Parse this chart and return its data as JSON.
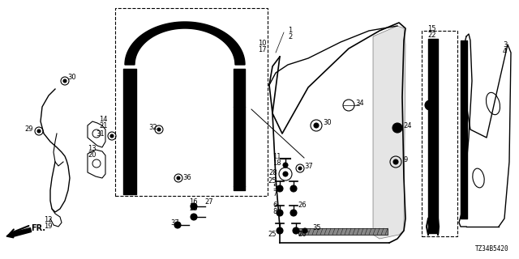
{
  "bg_color": "#ffffff",
  "diagram_code": "TZ34B5420",
  "figsize": [
    6.4,
    3.2
  ],
  "dpi": 100
}
